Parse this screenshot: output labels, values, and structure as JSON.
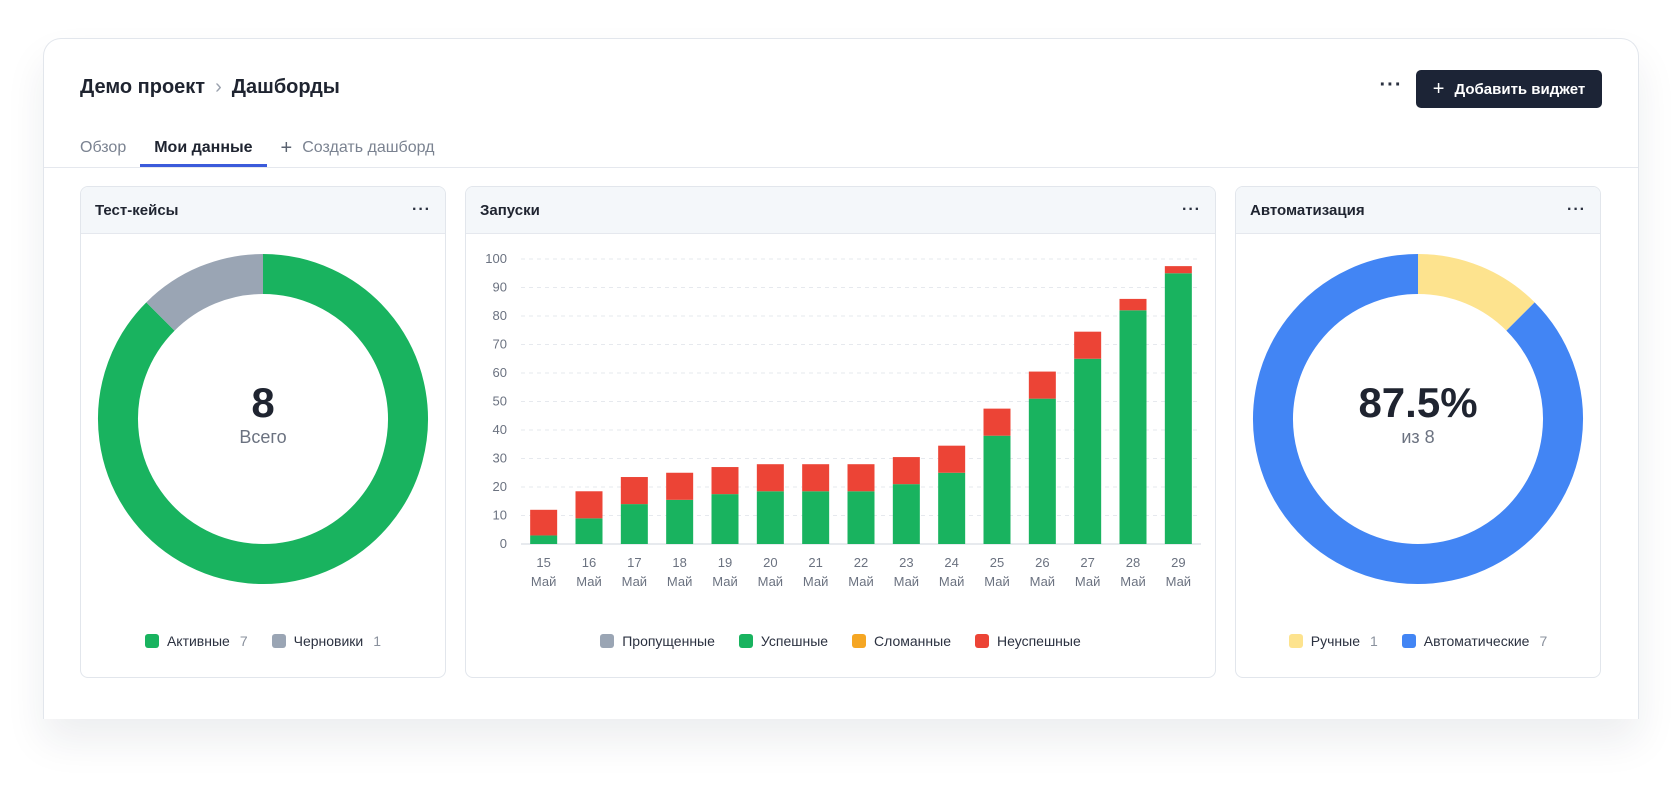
{
  "header": {
    "breadcrumb": [
      "Демо проект",
      "Дашборды"
    ],
    "more_label": "···",
    "add_button_label": "Добавить виджет"
  },
  "tabs": [
    {
      "label": "Обзор",
      "active": false
    },
    {
      "label": "Мои данные",
      "active": true
    },
    {
      "label": "Создать дашборд",
      "active": false
    }
  ],
  "widgets": {
    "test_cases": {
      "title": "Тест-кейсы",
      "more_label": "···",
      "center_value": "8",
      "center_label": "Всего",
      "legend": [
        {
          "label": "Активные",
          "count": "7",
          "color": "#19b35f"
        },
        {
          "label": "Черновики",
          "count": "1",
          "color": "#9aa5b4"
        }
      ]
    },
    "runs": {
      "title": "Запуски",
      "more_label": "···",
      "legend": [
        {
          "label": "Пропущенные",
          "color": "#9aa5b4"
        },
        {
          "label": "Успешные",
          "color": "#19b35f"
        },
        {
          "label": "Сломанные",
          "color": "#f5a623"
        },
        {
          "label": "Неуспешные",
          "color": "#ec4436"
        }
      ]
    },
    "automation": {
      "title": "Автоматизация",
      "more_label": "···",
      "center_value": "87.5%",
      "center_label": "из 8",
      "legend": [
        {
          "label": "Ручные",
          "count": "1",
          "color": "#fde38e"
        },
        {
          "label": "Автоматические",
          "count": "7",
          "color": "#4285f4"
        }
      ]
    }
  },
  "chart_data": [
    {
      "type": "pie",
      "categories": [
        "Активные",
        "Черновики"
      ],
      "values": [
        7,
        1
      ],
      "colors": [
        "#19b35f",
        "#9aa5b4"
      ]
    },
    {
      "type": "bar",
      "stacked": true,
      "categories": [
        "15",
        "16",
        "17",
        "18",
        "19",
        "20",
        "21",
        "22",
        "23",
        "24",
        "25",
        "26",
        "27",
        "28",
        "29"
      ],
      "category_sublabel": "Май",
      "series": [
        {
          "name": "Пропущенные",
          "color": "#9aa5b4",
          "values": [
            0,
            0,
            0,
            0,
            0,
            0,
            0,
            0,
            0,
            0,
            0,
            0,
            0,
            0,
            0
          ]
        },
        {
          "name": "Успешные",
          "color": "#19b35f",
          "values": [
            3,
            9,
            14,
            15.5,
            17.5,
            18.5,
            18.5,
            18.5,
            21,
            25,
            38,
            51,
            65,
            82,
            95
          ]
        },
        {
          "name": "Сломанные",
          "color": "#f5a623",
          "values": [
            0,
            0,
            0,
            0,
            0,
            0,
            0,
            0,
            0,
            0,
            0,
            0,
            0,
            0,
            0
          ]
        },
        {
          "name": "Неуспешные",
          "color": "#ec4436",
          "values": [
            9,
            9.5,
            9.5,
            9.5,
            9.5,
            9.5,
            9.5,
            9.5,
            9.5,
            9.5,
            9.5,
            9.5,
            9.5,
            4,
            2.5
          ]
        }
      ],
      "yticks": [
        0,
        10,
        20,
        30,
        40,
        50,
        60,
        70,
        80,
        90,
        100
      ],
      "ylim": [
        0,
        100
      ],
      "grid": true,
      "legend_position": "bottom"
    },
    {
      "type": "pie",
      "categories": [
        "Ручные",
        "Автоматические"
      ],
      "values": [
        1,
        7
      ],
      "colors": [
        "#fde38e",
        "#4285f4"
      ]
    }
  ]
}
